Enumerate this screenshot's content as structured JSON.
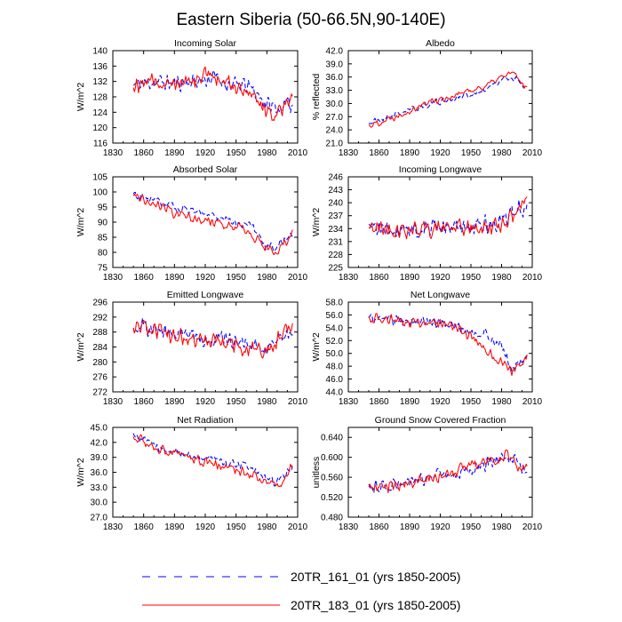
{
  "title": "Eastern Siberia (50-66.5N,90-140E)",
  "legend": {
    "entries": [
      {
        "label": "20TR_161_01 (yrs 1850-2005)",
        "color": "#0000ff",
        "dash": "dashed"
      },
      {
        "label": "20TR_183_01 (yrs 1850-2005)",
        "color": "#ff0000",
        "dash": "solid"
      }
    ]
  },
  "chart_data": [
    {
      "type": "line",
      "title": "Incoming Solar",
      "ylabel": "W/m^2",
      "xlim": [
        1830,
        2010
      ],
      "xticks": [
        1830,
        1860,
        1890,
        1920,
        1950,
        1980,
        2010
      ],
      "ylim": [
        116,
        140
      ],
      "yticks": [
        "116",
        "120",
        "124",
        "128",
        "132",
        "136",
        "140"
      ],
      "x_range": [
        1850,
        2005
      ],
      "series": [
        {
          "name": "20TR_161_01",
          "color": "#0000ff",
          "dash": "dashed",
          "anchors": [
            [
              1850,
              131
            ],
            [
              1870,
              132
            ],
            [
              1890,
              131.5
            ],
            [
              1910,
              132
            ],
            [
              1930,
              133
            ],
            [
              1945,
              131
            ],
            [
              1960,
              131
            ],
            [
              1970,
              129
            ],
            [
              1980,
              126
            ],
            [
              1990,
              125
            ],
            [
              2005,
              126
            ]
          ],
          "noise": 2.6,
          "seed": 11
        },
        {
          "name": "20TR_183_01",
          "color": "#ff0000",
          "dash": "solid",
          "anchors": [
            [
              1850,
              131
            ],
            [
              1870,
              132
            ],
            [
              1890,
              132
            ],
            [
              1910,
              133
            ],
            [
              1920,
              134
            ],
            [
              1945,
              131
            ],
            [
              1960,
              130
            ],
            [
              1970,
              128
            ],
            [
              1980,
              124
            ],
            [
              1990,
              124
            ],
            [
              2005,
              129
            ]
          ],
          "noise": 2.6,
          "seed": 12
        }
      ]
    },
    {
      "type": "line",
      "title": "Albedo",
      "ylabel": "% reflected",
      "xlim": [
        1830,
        2010
      ],
      "xticks": [
        1830,
        1860,
        1890,
        1920,
        1950,
        1980,
        2010
      ],
      "ylim": [
        21,
        42
      ],
      "yticks": [
        "21.0",
        "24.0",
        "27.0",
        "30.0",
        "33.0",
        "36.0",
        "39.0",
        "42.0"
      ],
      "x_range": [
        1850,
        2005
      ],
      "series": [
        {
          "name": "20TR_161_01",
          "color": "#0000ff",
          "dash": "dashed",
          "anchors": [
            [
              1850,
              25.5
            ],
            [
              1870,
              27
            ],
            [
              1890,
              28.5
            ],
            [
              1910,
              30
            ],
            [
              1930,
              31
            ],
            [
              1950,
              32
            ],
            [
              1965,
              33
            ],
            [
              1980,
              35.5
            ],
            [
              1990,
              36
            ],
            [
              2005,
              33.5
            ]
          ],
          "noise": 0.9,
          "seed": 21
        },
        {
          "name": "20TR_183_01",
          "color": "#ff0000",
          "dash": "solid",
          "anchors": [
            [
              1850,
              25
            ],
            [
              1870,
              26.5
            ],
            [
              1890,
              28.5
            ],
            [
              1910,
              30.5
            ],
            [
              1930,
              31.5
            ],
            [
              1950,
              33
            ],
            [
              1965,
              34
            ],
            [
              1980,
              36
            ],
            [
              1990,
              37
            ],
            [
              2005,
              33.5
            ]
          ],
          "noise": 1.0,
          "seed": 22
        }
      ]
    },
    {
      "type": "line",
      "title": "Absorbed Solar",
      "ylabel": "W/m^2",
      "xlim": [
        1830,
        2010
      ],
      "xticks": [
        1830,
        1860,
        1890,
        1920,
        1950,
        1980,
        2010
      ],
      "ylim": [
        75,
        105
      ],
      "yticks": [
        "75",
        "80",
        "85",
        "90",
        "95",
        "100",
        "105"
      ],
      "x_range": [
        1850,
        2005
      ],
      "series": [
        {
          "name": "20TR_161_01",
          "color": "#0000ff",
          "dash": "dashed",
          "anchors": [
            [
              1850,
              99
            ],
            [
              1870,
              97
            ],
            [
              1890,
              95
            ],
            [
              1910,
              93
            ],
            [
              1930,
              92
            ],
            [
              1950,
              90
            ],
            [
              1965,
              89
            ],
            [
              1980,
              82
            ],
            [
              1990,
              82
            ],
            [
              2005,
              86
            ]
          ],
          "noise": 1.8,
          "seed": 31
        },
        {
          "name": "20TR_183_01",
          "color": "#ff0000",
          "dash": "solid",
          "anchors": [
            [
              1850,
              99
            ],
            [
              1870,
              96
            ],
            [
              1890,
              93
            ],
            [
              1910,
              91
            ],
            [
              1930,
              90
            ],
            [
              1950,
              89
            ],
            [
              1965,
              86
            ],
            [
              1980,
              81
            ],
            [
              1990,
              80
            ],
            [
              2005,
              87
            ]
          ],
          "noise": 2.0,
          "seed": 32
        }
      ]
    },
    {
      "type": "line",
      "title": "Incoming Longwave",
      "ylabel": "W/m^2",
      "xlim": [
        1830,
        2010
      ],
      "xticks": [
        1830,
        1860,
        1890,
        1920,
        1950,
        1980,
        2010
      ],
      "ylim": [
        225,
        246
      ],
      "yticks": [
        "225",
        "228",
        "231",
        "234",
        "237",
        "240",
        "243",
        "246"
      ],
      "x_range": [
        1850,
        2005
      ],
      "series": [
        {
          "name": "20TR_161_01",
          "color": "#0000ff",
          "dash": "dashed",
          "anchors": [
            [
              1850,
              234
            ],
            [
              1900,
              234
            ],
            [
              1950,
              234.5
            ],
            [
              1975,
              235
            ],
            [
              1990,
              237
            ],
            [
              2005,
              240
            ]
          ],
          "noise": 2.6,
          "seed": 41
        },
        {
          "name": "20TR_183_01",
          "color": "#ff0000",
          "dash": "solid",
          "anchors": [
            [
              1850,
              234
            ],
            [
              1900,
              234
            ],
            [
              1950,
              234
            ],
            [
              1975,
              234.5
            ],
            [
              1990,
              237
            ],
            [
              2005,
              241
            ]
          ],
          "noise": 2.6,
          "seed": 42
        }
      ]
    },
    {
      "type": "line",
      "title": "Emitted Longwave",
      "ylabel": "W/m^2",
      "xlim": [
        1830,
        2010
      ],
      "xticks": [
        1830,
        1860,
        1890,
        1920,
        1950,
        1980,
        2010
      ],
      "ylim": [
        272,
        296
      ],
      "yticks": [
        "272",
        "276",
        "280",
        "284",
        "288",
        "292",
        "296"
      ],
      "x_range": [
        1850,
        2005
      ],
      "series": [
        {
          "name": "20TR_161_01",
          "color": "#0000ff",
          "dash": "dashed",
          "anchors": [
            [
              1850,
              290
            ],
            [
              1880,
              288
            ],
            [
              1910,
              287
            ],
            [
              1940,
              286
            ],
            [
              1960,
              285
            ],
            [
              1980,
              283
            ],
            [
              2005,
              289
            ]
          ],
          "noise": 2.7,
          "seed": 51
        },
        {
          "name": "20TR_183_01",
          "color": "#ff0000",
          "dash": "solid",
          "anchors": [
            [
              1850,
              290
            ],
            [
              1880,
              288
            ],
            [
              1910,
              286
            ],
            [
              1940,
              285
            ],
            [
              1960,
              284
            ],
            [
              1980,
              283
            ],
            [
              2005,
              290
            ]
          ],
          "noise": 2.7,
          "seed": 52
        }
      ]
    },
    {
      "type": "line",
      "title": "Net Longwave",
      "ylabel": "W/m^2",
      "xlim": [
        1830,
        2010
      ],
      "xticks": [
        1830,
        1860,
        1890,
        1920,
        1950,
        1980,
        2010
      ],
      "ylim": [
        44,
        58
      ],
      "yticks": [
        "44.0",
        "46.0",
        "48.0",
        "50.0",
        "52.0",
        "54.0",
        "56.0",
        "58.0"
      ],
      "x_range": [
        1850,
        2005
      ],
      "series": [
        {
          "name": "20TR_161_01",
          "color": "#0000ff",
          "dash": "dashed",
          "anchors": [
            [
              1850,
              55.5
            ],
            [
              1890,
              55
            ],
            [
              1930,
              54.5
            ],
            [
              1950,
              53.5
            ],
            [
              1965,
              53
            ],
            [
              1980,
              51
            ],
            [
              1990,
              47.5
            ],
            [
              2005,
              49
            ]
          ],
          "noise": 1.0,
          "seed": 61
        },
        {
          "name": "20TR_183_01",
          "color": "#ff0000",
          "dash": "solid",
          "anchors": [
            [
              1850,
              55.5
            ],
            [
              1890,
              55
            ],
            [
              1930,
              54.5
            ],
            [
              1950,
              52.5
            ],
            [
              1965,
              50.5
            ],
            [
              1980,
              48.5
            ],
            [
              1990,
              47
            ],
            [
              2005,
              49.5
            ]
          ],
          "noise": 1.0,
          "seed": 62
        }
      ]
    },
    {
      "type": "line",
      "title": "Net Radiation",
      "ylabel": "W/m^2",
      "xlim": [
        1830,
        2010
      ],
      "xticks": [
        1830,
        1860,
        1890,
        1920,
        1950,
        1980,
        2010
      ],
      "ylim": [
        27,
        45
      ],
      "yticks": [
        "27.0",
        "30.0",
        "33.0",
        "36.0",
        "39.0",
        "42.0",
        "45.0"
      ],
      "x_range": [
        1850,
        2005
      ],
      "series": [
        {
          "name": "20TR_161_01",
          "color": "#0000ff",
          "dash": "dashed",
          "anchors": [
            [
              1850,
              43.5
            ],
            [
              1870,
              41.5
            ],
            [
              1900,
              39.5
            ],
            [
              1930,
              38.5
            ],
            [
              1960,
              37
            ],
            [
              1980,
              35
            ],
            [
              1990,
              34
            ],
            [
              2005,
              37
            ]
          ],
          "noise": 1.1,
          "seed": 71
        },
        {
          "name": "20TR_183_01",
          "color": "#ff0000",
          "dash": "solid",
          "anchors": [
            [
              1850,
              43.5
            ],
            [
              1870,
              41
            ],
            [
              1900,
              39
            ],
            [
              1930,
              37.5
            ],
            [
              1960,
              36
            ],
            [
              1980,
              34
            ],
            [
              1990,
              33
            ],
            [
              2005,
              37.5
            ]
          ],
          "noise": 1.2,
          "seed": 72
        }
      ]
    },
    {
      "type": "line",
      "title": "Ground Snow Covered Fraction",
      "ylabel": "unitless",
      "xlim": [
        1830,
        2010
      ],
      "xticks": [
        1830,
        1860,
        1890,
        1920,
        1950,
        1980,
        2010
      ],
      "ylim": [
        0.48,
        0.66
      ],
      "yticks": [
        "0.480",
        "0.520",
        "0.560",
        "0.600",
        "0.640"
      ],
      "x_range": [
        1850,
        2005
      ],
      "series": [
        {
          "name": "20TR_161_01",
          "color": "#0000ff",
          "dash": "dashed",
          "anchors": [
            [
              1850,
              0.54
            ],
            [
              1890,
              0.55
            ],
            [
              1920,
              0.565
            ],
            [
              1950,
              0.575
            ],
            [
              1970,
              0.59
            ],
            [
              1985,
              0.605
            ],
            [
              2005,
              0.575
            ]
          ],
          "noise": 0.016,
          "seed": 81
        },
        {
          "name": "20TR_183_01",
          "color": "#ff0000",
          "dash": "solid",
          "anchors": [
            [
              1850,
              0.535
            ],
            [
              1890,
              0.55
            ],
            [
              1920,
              0.565
            ],
            [
              1950,
              0.58
            ],
            [
              1970,
              0.595
            ],
            [
              1985,
              0.6
            ],
            [
              2005,
              0.575
            ]
          ],
          "noise": 0.018,
          "seed": 82
        }
      ]
    }
  ]
}
